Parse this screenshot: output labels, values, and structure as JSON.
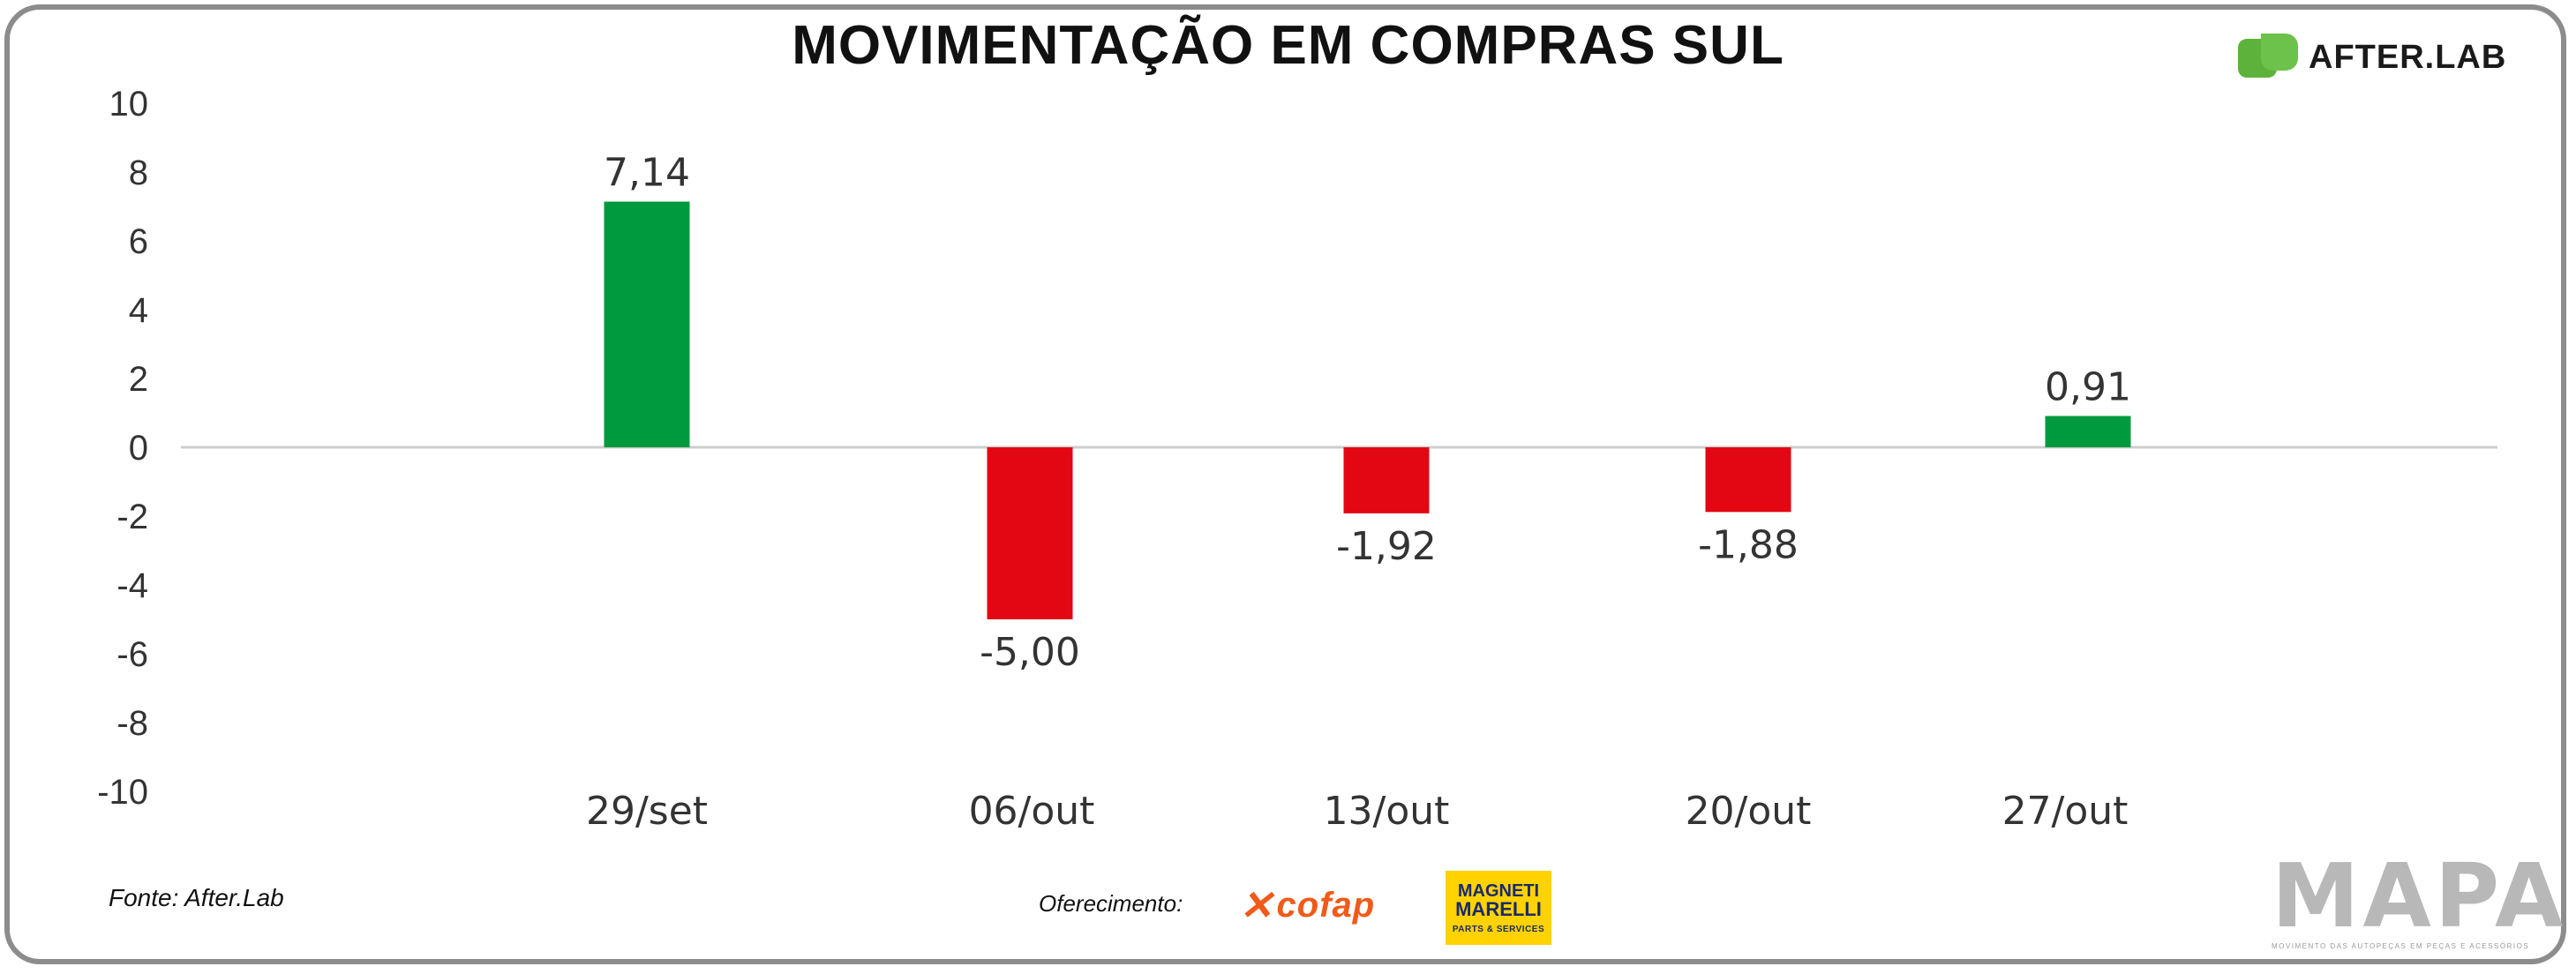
{
  "header": {
    "title": "MOVIMENTAÇÃO EM COMPRAS SUL",
    "brand": "AFTER.LAB"
  },
  "footer": {
    "source": "Fonte: After.Lab",
    "sponsor_label": "Oferecimento:",
    "sponsor_1": "cofap",
    "sponsor_2_line1": "MAGNETI",
    "sponsor_2_line2": "MARELLI",
    "sponsor_2_line3": "PARTS & SERVICES",
    "publisher": "MAPA",
    "publisher_tagline": "MOVIMENTO DAS AUTOPEÇAS EM PEÇAS E ACESSÓRIOS"
  },
  "chart_data": {
    "type": "bar",
    "title": "MOVIMENTAÇÃO EM COMPRAS SUL",
    "xlabel": "",
    "ylabel": "",
    "categories": [
      "29/set",
      "06/out",
      "13/out",
      "20/out",
      "27/out"
    ],
    "values": [
      7.14,
      -5.0,
      -1.92,
      -1.88,
      0.91
    ],
    "value_labels": [
      "7,14",
      "-5,00",
      "-1,92",
      "-1,88",
      "0,91"
    ],
    "ylim": [
      -10,
      10
    ],
    "yticks": [
      10,
      8,
      6,
      4,
      2,
      0,
      -2,
      -4,
      -6,
      -8,
      -10
    ],
    "grid": false,
    "legend": "none",
    "colors": {
      "positive": "#009a3e",
      "negative": "#e30613",
      "axis": "#cccccc",
      "text": "#333333"
    }
  }
}
